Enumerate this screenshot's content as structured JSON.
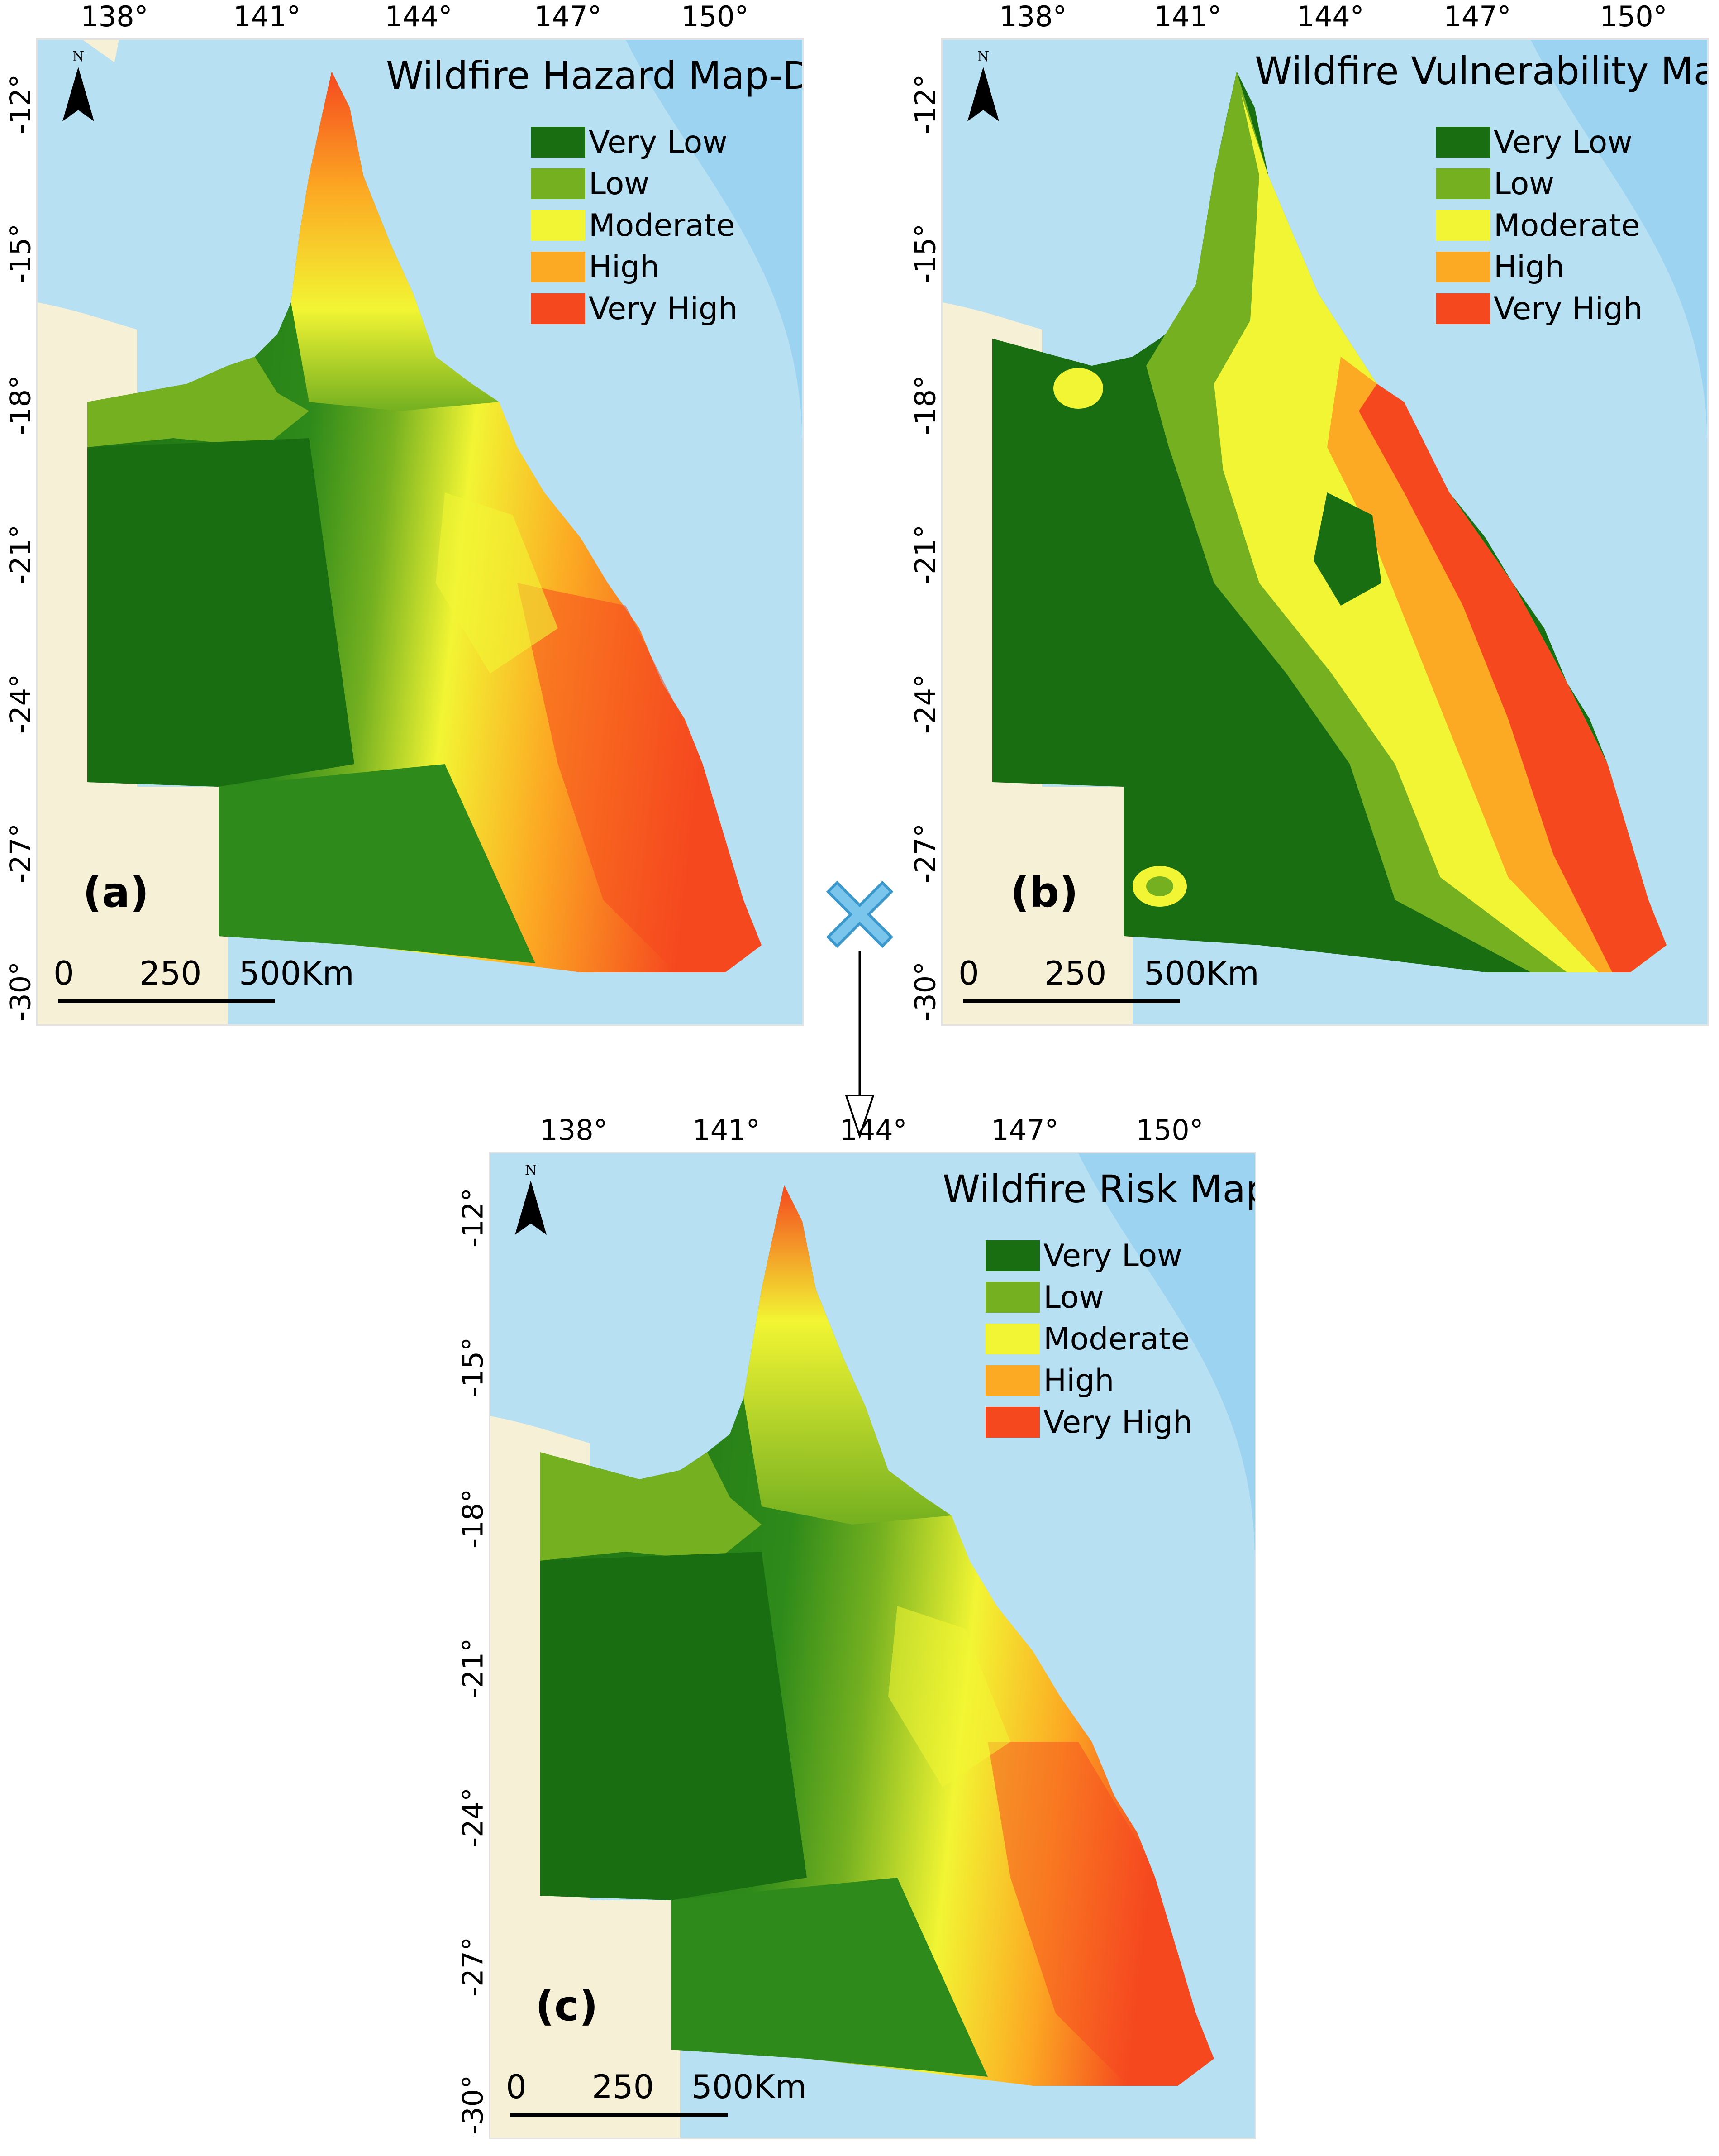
{
  "legend": [
    {
      "label": "Very Low",
      "color": "#1a6e12"
    },
    {
      "label": "Low",
      "color": "#74b020"
    },
    {
      "label": "Moderate",
      "color": "#f2f533"
    },
    {
      "label": "High",
      "color": "#fca923"
    },
    {
      "label": "Very High",
      "color": "#f5481f"
    }
  ],
  "axes": {
    "lon": [
      "138°",
      "141°",
      "144°",
      "147°",
      "150°"
    ],
    "lat": [
      "-12°",
      "-15°",
      "-18°",
      "-21°",
      "-24°",
      "-27°",
      "-30°"
    ]
  },
  "north_letter": "N",
  "scale": {
    "zero": "0",
    "mid": "250",
    "end": "500Km"
  },
  "panels": {
    "a": {
      "title": "Wildfire Hazard Map-DT",
      "label": "(a)"
    },
    "b": {
      "title": "Wildfire Vulnerability Map",
      "label": "(b)"
    },
    "c": {
      "title": "Wildfire Risk Map",
      "label": "(c)"
    }
  },
  "colors": {
    "sea": "#b7e0f3",
    "deep_sea": "#7fc4ea",
    "land": "#f5f0d6",
    "multiply_symbol": "#7ac5ec"
  },
  "icons": {
    "multiply": "multiply-x-icon",
    "arrow": "down-arrow-icon",
    "north": "north-arrow-icon"
  }
}
